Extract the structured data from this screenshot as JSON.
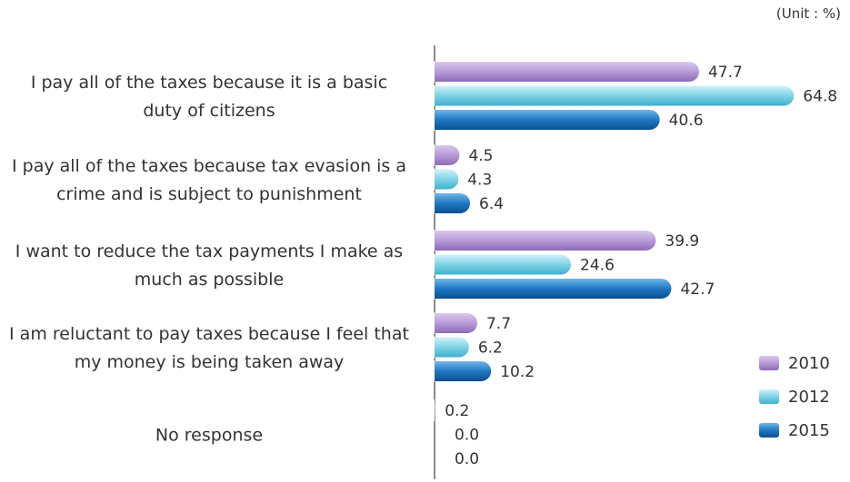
{
  "unit_note": "(Unit : %)",
  "colors": {
    "2010": "#b79bd6",
    "2012": "#7fd3e6",
    "2015": "#1f78c4"
  },
  "chart_data": {
    "type": "bar",
    "orientation": "horizontal",
    "categories": [
      [
        "I pay all of the taxes because it is a basic",
        "duty of citizens"
      ],
      [
        "I pay all of the taxes because tax evasion is a",
        "crime and is subject to punishment"
      ],
      [
        "I want to reduce the tax payments I make as",
        "much as possible"
      ],
      [
        "I am reluctant to pay taxes because I feel that",
        "my money is being taken away"
      ],
      [
        "No response"
      ]
    ],
    "series": [
      {
        "name": "2010",
        "values": [
          47.7,
          4.5,
          39.9,
          7.7,
          0.2
        ]
      },
      {
        "name": "2012",
        "values": [
          64.8,
          4.3,
          24.6,
          6.2,
          0.0
        ]
      },
      {
        "name": "2015",
        "values": [
          40.6,
          6.4,
          42.7,
          10.2,
          0.0
        ]
      }
    ],
    "value_labels": [
      [
        "47.7",
        "4.5",
        "39.9",
        "7.7",
        "0.2"
      ],
      [
        "64.8",
        "4.3",
        "24.6",
        "6.2",
        "0.0"
      ],
      [
        "40.6",
        "6.4",
        "42.7",
        "10.2",
        "0.0"
      ]
    ],
    "xlim": [
      0,
      70
    ],
    "legend": "bottom-right",
    "grid": false
  }
}
